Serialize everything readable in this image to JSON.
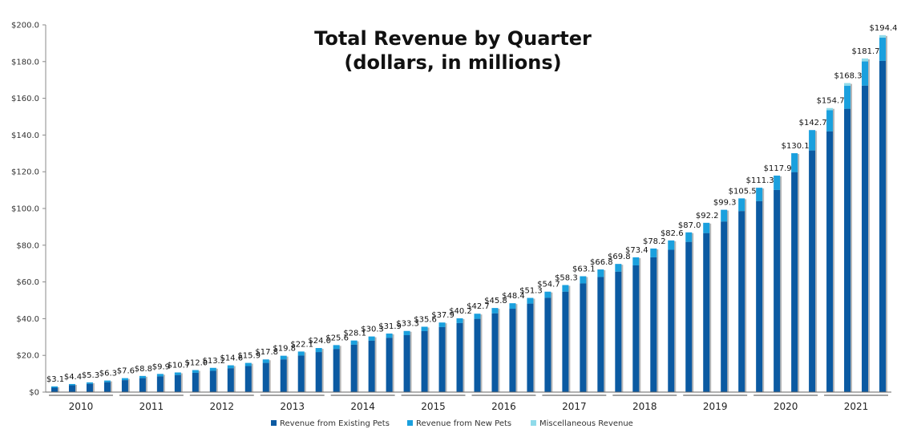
{
  "chart_data": {
    "type": "bar",
    "stacked": true,
    "title": "Total Revenue by Quarter",
    "subtitle": "(dollars, in millions)",
    "xlabel": "",
    "ylabel": "",
    "ylim": [
      0,
      200
    ],
    "yticks": [
      "$0",
      "$20.0",
      "$40.0",
      "$60.0",
      "$80.0",
      "$100.0",
      "$120.0",
      "$140.0",
      "$160.0",
      "$180.0",
      "$200.0"
    ],
    "years": [
      "2010",
      "2011",
      "2012",
      "2013",
      "2014",
      "2015",
      "2016",
      "2017",
      "2018",
      "2019",
      "2020",
      "2021"
    ],
    "legend_position": "bottom",
    "colors": {
      "existing": "#0b5aa2",
      "new": "#1aa0de",
      "misc": "#8fdbea",
      "shadow": "#b8b8b8"
    },
    "labels": [
      "$3.1",
      "$4.4",
      "$5.3",
      "$6.3",
      "$7.6",
      "$8.8",
      "$9.9",
      "$10.7",
      "$12.0",
      "$13.2",
      "$14.6",
      "$15.9",
      "$17.8",
      "$19.8",
      "$22.1",
      "$24.0",
      "$25.6",
      "$28.1",
      "$30.3",
      "$31.9",
      "$33.3",
      "$35.6",
      "$37.9",
      "$40.2",
      "$42.7",
      "$45.8",
      "$48.4",
      "$51.3",
      "$54.7",
      "$58.3",
      "$63.1",
      "$66.8",
      "$69.8",
      "$73.4",
      "$78.2",
      "$82.6",
      "$87.0",
      "$92.2",
      "$99.3",
      "$105.5",
      "$111.3",
      "$117.9",
      "$130.1",
      "$142.7",
      "$154.7",
      "$168.3",
      "$181.7",
      "$194.4"
    ],
    "series": [
      {
        "name": "Revenue from Existing Pets",
        "key": "existing",
        "values": [
          2.4,
          3.7,
          4.5,
          5.4,
          6.5,
          7.6,
          8.6,
          9.3,
          10.5,
          11.6,
          13.0,
          14.2,
          15.9,
          17.8,
          19.9,
          21.8,
          23.5,
          25.8,
          28.0,
          29.6,
          31.0,
          33.2,
          35.4,
          37.6,
          39.9,
          42.9,
          45.4,
          48.2,
          51.4,
          54.7,
          59.2,
          62.7,
          65.6,
          69.0,
          73.4,
          77.5,
          81.8,
          86.6,
          92.9,
          98.6,
          104.0,
          110.1,
          119.8,
          131.6,
          142.0,
          154.3,
          166.9,
          180.4
        ]
      },
      {
        "name": "Revenue from New Pets",
        "key": "new",
        "values": [
          0.7,
          0.7,
          0.8,
          0.9,
          1.1,
          1.2,
          1.3,
          1.4,
          1.5,
          1.6,
          1.6,
          1.7,
          1.9,
          2.0,
          2.2,
          2.2,
          2.1,
          2.3,
          2.3,
          2.3,
          2.3,
          2.4,
          2.5,
          2.6,
          2.8,
          2.9,
          3.0,
          3.1,
          3.3,
          3.6,
          3.9,
          4.1,
          4.2,
          4.4,
          4.8,
          5.1,
          5.2,
          5.6,
          6.4,
          6.9,
          7.3,
          7.8,
          10.3,
          11.1,
          11.5,
          12.5,
          13.2,
          12.6
        ]
      },
      {
        "name": "Miscellaneous Revenue",
        "key": "misc",
        "values": [
          0,
          0,
          0,
          0,
          0,
          0,
          0,
          0,
          0,
          0,
          0,
          0,
          0,
          0,
          0,
          0,
          0,
          0,
          0,
          0,
          0,
          0,
          0,
          0,
          0,
          0,
          0,
          0,
          0,
          0,
          0,
          0,
          0,
          0,
          0,
          0,
          0,
          0,
          0,
          0,
          0,
          0,
          0,
          0,
          1.2,
          1.5,
          1.6,
          1.4
        ]
      }
    ]
  }
}
